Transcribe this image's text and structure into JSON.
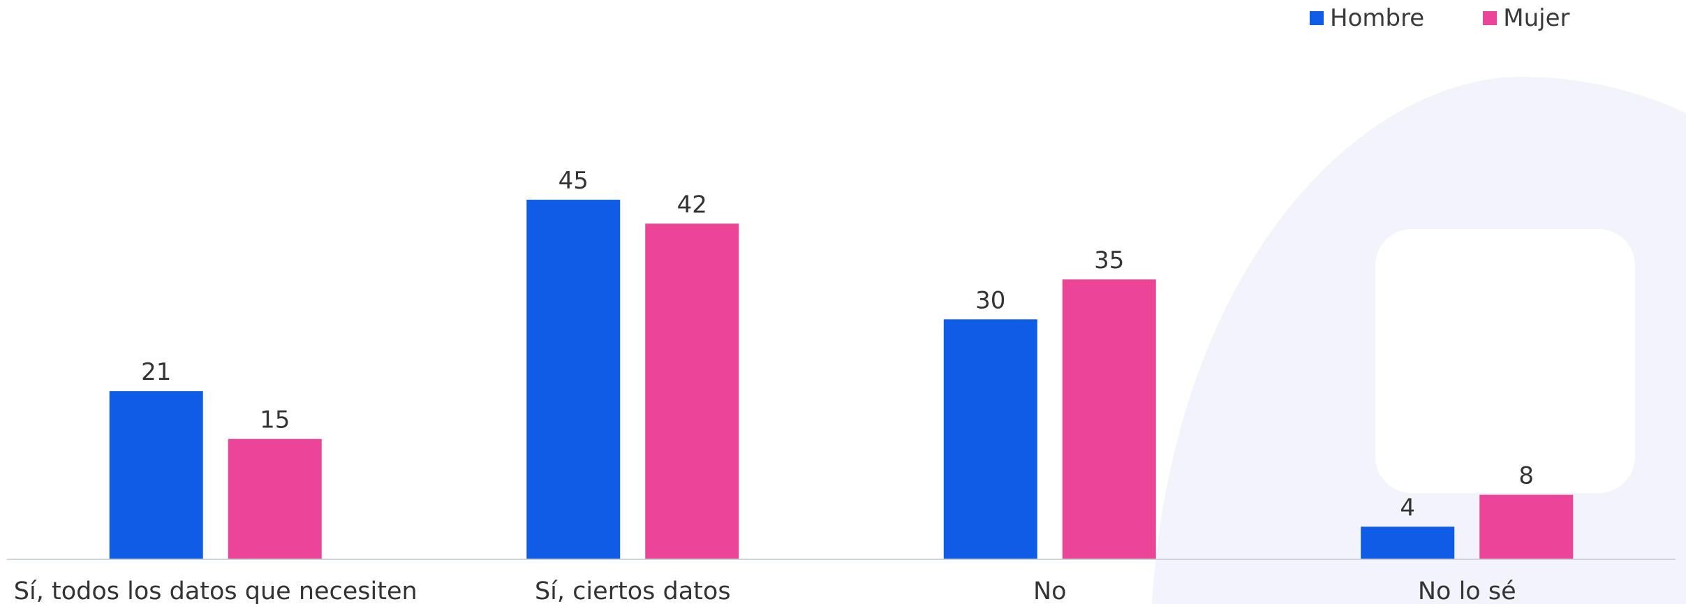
{
  "chart_data": {
    "type": "bar",
    "categories": [
      "Sí, todos los datos que necesiten",
      "Sí, ciertos datos",
      "No",
      "No lo sé"
    ],
    "series": [
      {
        "name": "Hombre",
        "values": [
          21,
          45,
          30,
          4
        ],
        "color": "#0f5ce6"
      },
      {
        "name": "Mujer",
        "values": [
          15,
          42,
          35,
          8
        ],
        "color": "#ec4497"
      }
    ],
    "ylim": [
      0,
      45
    ],
    "grid": false,
    "legend_position": "top-right",
    "axis_color": "#cfd3dc",
    "label_color": "#333333",
    "watermark_color": "#f2f3fb"
  }
}
